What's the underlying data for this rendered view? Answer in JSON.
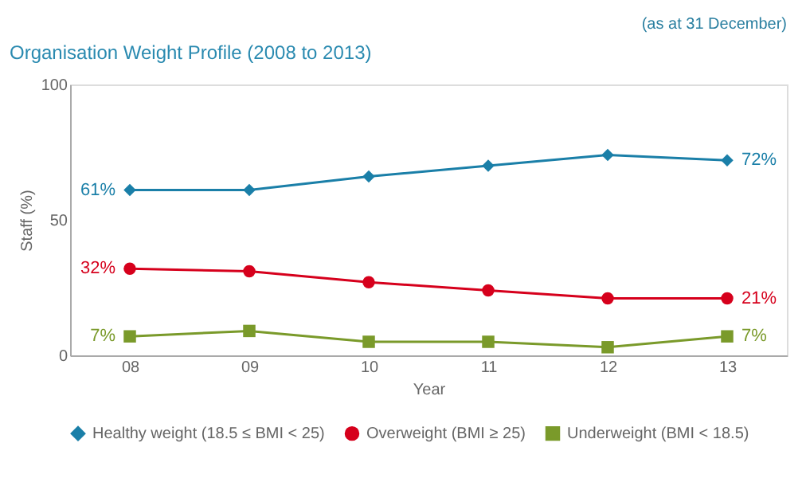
{
  "chart_data": {
    "type": "line",
    "title": "Organisation Weight Profile (2008 to 2013)",
    "annotations": [
      "(as at 31 December)"
    ],
    "xlabel": "Year",
    "ylabel": "Staff (%)",
    "categories": [
      "08",
      "09",
      "10",
      "11",
      "12",
      "13"
    ],
    "series": [
      {
        "name": "Healthy weight (18.5 ≤ BMI < 25)",
        "color": "#1a7fa8",
        "marker": "diamond",
        "values": [
          61,
          61,
          66,
          70,
          74,
          72
        ],
        "value_labels": [
          "61%",
          null,
          null,
          null,
          null,
          "72%"
        ]
      },
      {
        "name": "Overweight (BMI ≥ 25)",
        "color": "#d6001c",
        "marker": "circle",
        "values": [
          32,
          31,
          27,
          24,
          21,
          21
        ],
        "value_labels": [
          "32%",
          null,
          null,
          null,
          null,
          "21%"
        ]
      },
      {
        "name": "Underweight (BMI < 18.5)",
        "color": "#7a9a2a",
        "marker": "square",
        "values": [
          7,
          9,
          5,
          5,
          3,
          7
        ],
        "value_labels": [
          "7%",
          null,
          null,
          null,
          null,
          "7%"
        ]
      }
    ],
    "ylim": [
      0,
      100
    ],
    "yticks": [
      0,
      50,
      100
    ],
    "grid": false,
    "legend": "bottom",
    "line_style": "solid"
  }
}
